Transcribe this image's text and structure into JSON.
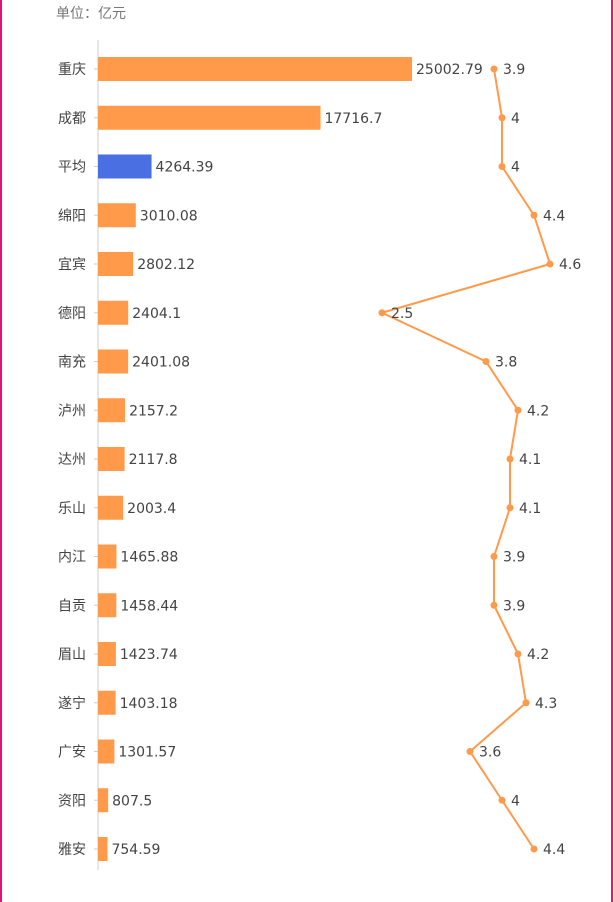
{
  "unit_label": "单位：亿元",
  "colors": {
    "bar": "#ff9a4a",
    "highlight": "#4a6fe3",
    "line": "#ff9a4a",
    "axis": "#cccccc",
    "edge": "#d6197a"
  },
  "chart_data": {
    "type": "bar",
    "orientation": "horizontal",
    "categories": [
      "重庆",
      "成都",
      "平均",
      "绵阳",
      "宜宾",
      "德阳",
      "南充",
      "泸州",
      "达州",
      "乐山",
      "内江",
      "自贡",
      "眉山",
      "遂宁",
      "广安",
      "资阳",
      "雅安"
    ],
    "highlight_category": "平均",
    "series": [
      {
        "type": "bar",
        "values": [
          25002.79,
          17716.7,
          4264.39,
          3010.08,
          2802.12,
          2404.1,
          2401.08,
          2157.2,
          2117.8,
          2003.4,
          1465.88,
          1458.44,
          1423.74,
          1403.18,
          1301.57,
          807.5,
          754.59
        ],
        "labels": [
          "25002.79",
          "17716.7",
          "4264.39",
          "3010.08",
          "2802.12",
          "2404.1",
          "2401.08",
          "2157.2",
          "2117.8",
          "2003.4",
          "1465.88",
          "1458.44",
          "1423.74",
          "1403.18",
          "1301.57",
          "807.5",
          "754.59"
        ]
      },
      {
        "type": "line",
        "values": [
          3.9,
          4,
          4,
          4.4,
          4.6,
          2.5,
          3.8,
          4.2,
          4.1,
          4.1,
          3.9,
          3.9,
          4.2,
          4.3,
          3.6,
          4,
          4.4
        ],
        "labels": [
          "3.9",
          "4",
          "4",
          "4.4",
          "4.6",
          "2.5",
          "3.8",
          "4.2",
          "4.1",
          "4.1",
          "3.9",
          "3.9",
          "4.2",
          "4.3",
          "3.6",
          "4",
          "4.4"
        ]
      }
    ],
    "bar_xlim": [
      0,
      25002.79
    ],
    "line_xlim": [
      2.5,
      4.6
    ],
    "grid": false,
    "legend": "none"
  }
}
